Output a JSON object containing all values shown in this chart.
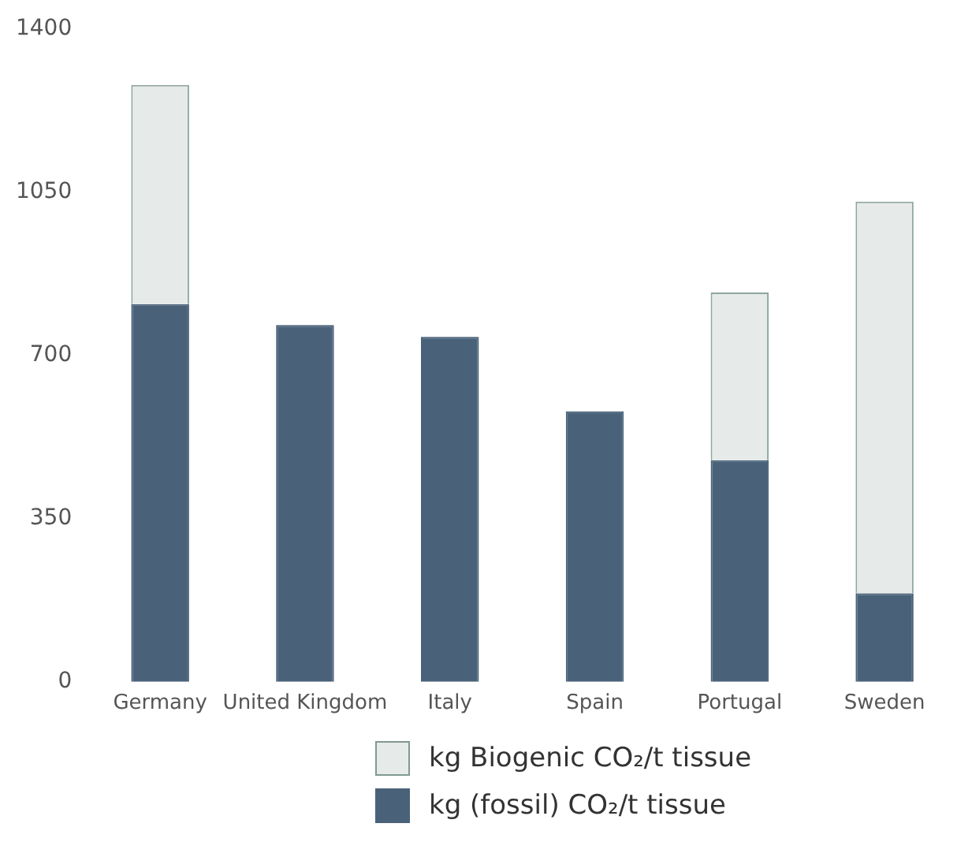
{
  "chart_data": {
    "type": "bar",
    "stacked": true,
    "categories": [
      "Germany",
      "United Kingdom",
      "Italy",
      "Spain",
      "Portugal",
      "Sweden"
    ],
    "series": [
      {
        "name": "kg (fossil) CO₂/t tissue",
        "color": "#4a6279",
        "values": [
          810,
          765,
          740,
          580,
          475,
          190
        ]
      },
      {
        "name": "kg Biogenic CO₂/t tissue",
        "color": "#e6ebe9",
        "values": [
          470,
          null,
          null,
          null,
          360,
          840
        ]
      }
    ],
    "ylim": [
      0,
      1400
    ],
    "yticks": [
      0,
      350,
      700,
      1050,
      1400
    ],
    "grid": false,
    "legend": "bottom"
  }
}
